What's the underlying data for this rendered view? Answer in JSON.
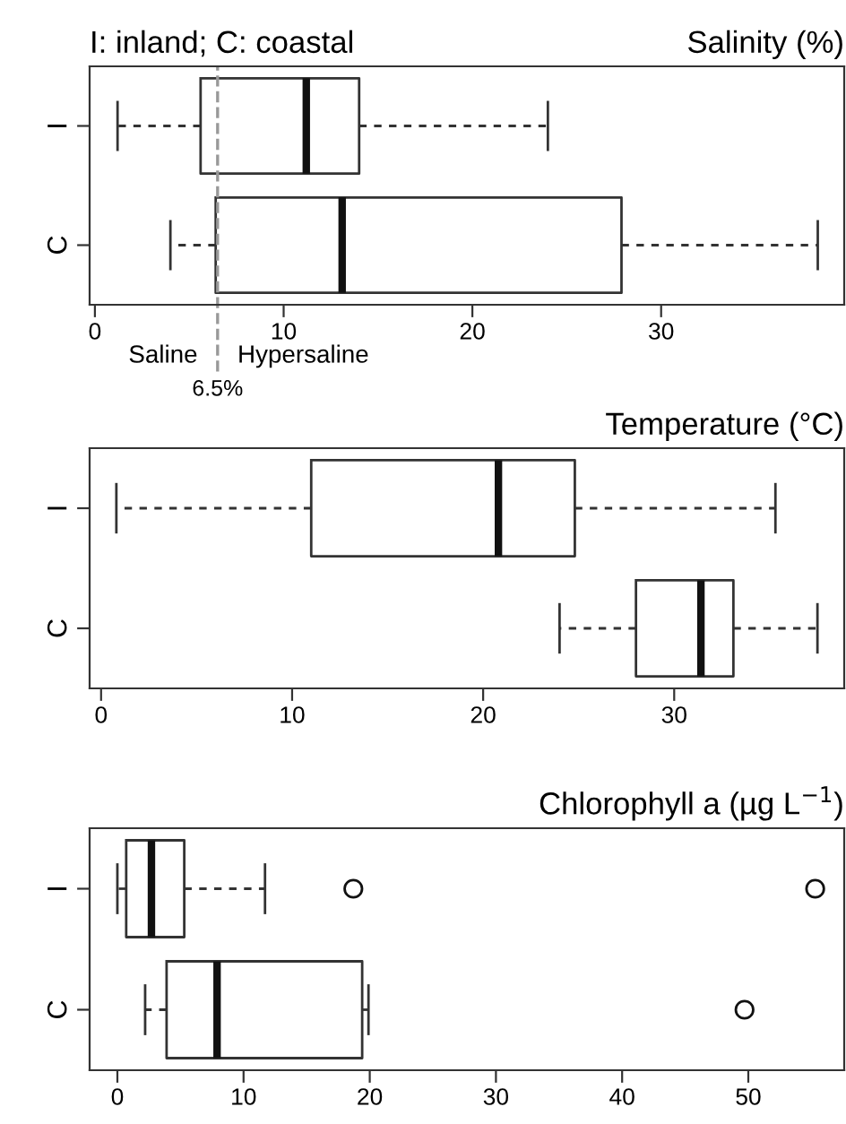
{
  "chart_data": [
    {
      "type": "box",
      "title": "Salinity (%)",
      "categories": [
        "I",
        "C"
      ],
      "orientation": "horizontal",
      "boxes": [
        {
          "low": 1.2,
          "q1": 5.6,
          "median": 11.2,
          "q3": 14.0,
          "high": 24.0
        },
        {
          "low": 4.0,
          "q1": 6.4,
          "median": 13.1,
          "q3": 27.9,
          "high": 38.3
        }
      ],
      "xlim": [
        -0.28,
        39.7
      ],
      "xticks": [
        0,
        10,
        20,
        30
      ],
      "ref_lines": [
        {
          "axis": "x",
          "value": 6.5,
          "label": "6.5%",
          "color": "#999999",
          "line_style": "dashed"
        }
      ],
      "annotations": [
        "I: inland; C: coastal",
        "Saline",
        "Hypersaline"
      ]
    },
    {
      "type": "box",
      "title": "Temperature (°C)",
      "categories": [
        "I",
        "C"
      ],
      "orientation": "horizontal",
      "boxes": [
        {
          "low": 0.8,
          "q1": 11.0,
          "median": 20.8,
          "q3": 24.8,
          "high": 35.3
        },
        {
          "low": 24.0,
          "q1": 28.0,
          "median": 31.4,
          "q3": 33.1,
          "high": 37.5
        }
      ],
      "xlim": [
        -0.6,
        38.9
      ],
      "xticks": [
        0,
        10,
        20,
        30
      ]
    },
    {
      "type": "box",
      "title": "Chlorophyll a (µg L$^{−1}$)",
      "categories": [
        "I",
        "C"
      ],
      "orientation": "horizontal",
      "boxes": [
        {
          "low": 0.0,
          "q1": 0.7,
          "median": 2.7,
          "q3": 5.3,
          "high": 11.7,
          "outliers": [
            18.7,
            55.3
          ]
        },
        {
          "low": 2.2,
          "q1": 3.9,
          "median": 7.9,
          "q3": 19.4,
          "high": 19.9,
          "outliers": [
            49.7
          ]
        }
      ],
      "xlim": [
        -2.2,
        57.6
      ],
      "xticks": [
        0,
        10,
        20,
        30,
        40,
        50
      ]
    }
  ]
}
